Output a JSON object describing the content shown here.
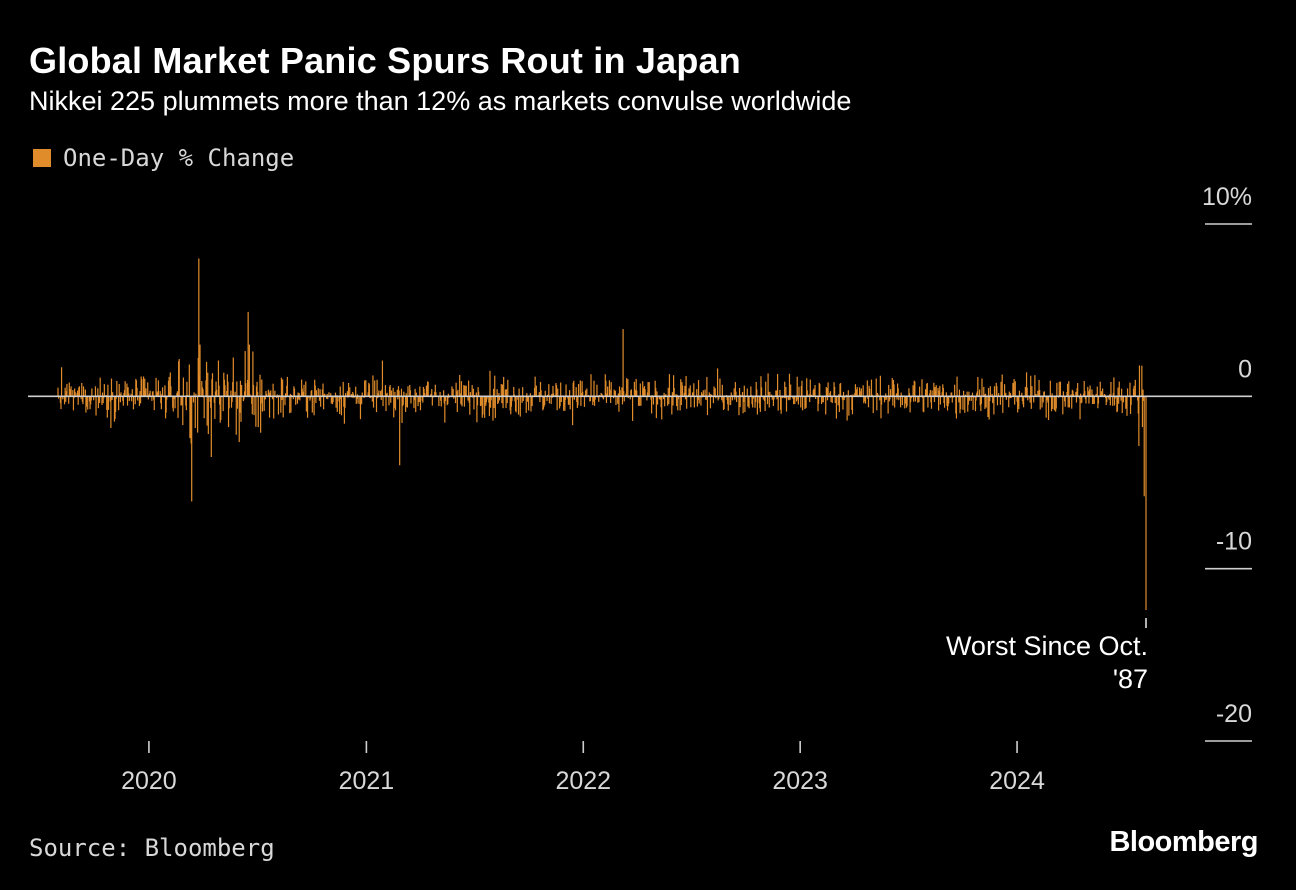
{
  "title": "Global Market Panic Spurs Rout in Japan",
  "subtitle": "Nikkei 225 plummets more than 12% as markets convulse worldwide",
  "legend_label": "One-Day % Change",
  "source": "Source: Bloomberg",
  "brand": "Bloomberg",
  "colors": {
    "series": "#e08c2b",
    "background": "#000000",
    "axis": "#d8d8d8"
  },
  "chart_data": {
    "type": "bar",
    "series": [
      {
        "name": "One-Day % Change"
      }
    ],
    "x_range": [
      "2019-08-01",
      "2024-08-05"
    ],
    "ylim": [
      -20,
      10
    ],
    "y_ticks": [
      {
        "value": 10,
        "label": "10%"
      },
      {
        "value": 0,
        "label": "0"
      },
      {
        "value": -10,
        "label": "-10"
      },
      {
        "value": -20,
        "label": "-20"
      }
    ],
    "x_ticks": [
      {
        "date": "2020-01-01",
        "label": "2020"
      },
      {
        "date": "2021-01-01",
        "label": "2021"
      },
      {
        "date": "2022-01-01",
        "label": "2022"
      },
      {
        "date": "2023-01-01",
        "label": "2023"
      },
      {
        "date": "2024-01-01",
        "label": "2024"
      }
    ],
    "key_points": [
      {
        "date": "2020-03-25",
        "value": 8.0
      },
      {
        "date": "2020-03-13",
        "value": -6.1
      },
      {
        "date": "2020-06-16",
        "value": 4.9
      },
      {
        "date": "2021-02-26",
        "value": -4.0
      },
      {
        "date": "2022-03-09",
        "value": 3.9
      },
      {
        "date": "2024-08-02",
        "value": -5.8
      },
      {
        "date": "2024-08-05",
        "value": -12.4
      }
    ],
    "annotation": {
      "date": "2024-08-05",
      "value": -12.4,
      "lines": [
        "Worst Since Oct.",
        "'87"
      ]
    }
  }
}
